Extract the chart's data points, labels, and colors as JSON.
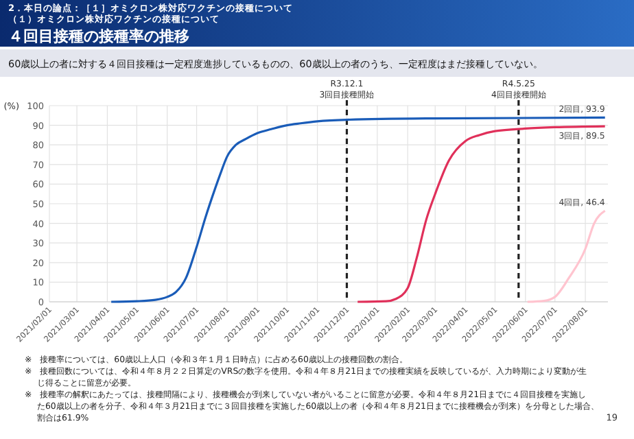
{
  "chart_data": {
    "type": "line",
    "title": "４回目接種の接種率の推移",
    "subtitle": "60歳以上の者に対する４回目接種は一定程度進捗しているものの、60歳以上の者のうち、一定程度はまだ接種していない。",
    "ylabel": "(%)",
    "annotations": [
      "2．本日の論点：［１］オミクロン株対応ワクチンの接種について",
      "（１）オミクロン株対応ワクチンの接種について",
      "※　接種率については、60歳以上人口（令和３年１月１日時点）に占める60歳以上の接種回数の割合。",
      "※　接種回数については、令和４年８月２２日算定のVRSの数字を使用。令和４年８月21日までの接種実績を反映しているが、入力時期により変動が生じ得ることに留意が必要。",
      "※　接種率の解釈にあたっては、接種間隔により、接種機会が到来していない者がいることに留意が必要。令和４年８月21日までに４回目接種を実施した60歳以上の者を分子、令和４年３月21日までに３回目接種を実施した60歳以上の者（令和４年８月21日までに接種機会が到来）を分母とした場合、割合は61.9%",
      "19",
      {
        "text": "2回目, 93.9",
        "x": "2022-08-21",
        "y": 93.9
      },
      {
        "text": "3回目, 89.5",
        "x": "2022-08-21",
        "y": 89.5
      },
      {
        "text": "4回目, 46.4",
        "x": "2022-08-21",
        "y": 46.4
      }
    ],
    "series": [
      {
        "color": "#1a5cb8",
        "x": [
          "2021-04-05",
          "2021-05-01",
          "2021-05-20",
          "2021-06-01",
          "2021-06-10",
          "2021-06-20",
          "2021-07-01",
          "2021-07-10",
          "2021-07-20",
          "2021-07-25",
          "2021-08-01",
          "2021-08-10",
          "2021-08-20",
          "2021-09-01",
          "2021-09-15",
          "2021-10-01",
          "2021-10-15",
          "2021-11-01",
          "2021-12-01",
          "2022-03-01",
          "2022-08-21"
        ],
        "values": [
          0,
          0.3,
          1,
          2.5,
          5,
          12,
          28,
          43,
          58,
          65,
          74,
          80,
          83,
          86,
          88,
          90,
          91,
          92,
          92.8,
          93.5,
          93.9
        ]
      },
      {
        "color": "#e0305a",
        "x": [
          "2021-12-12",
          "2022-01-10",
          "2022-01-20",
          "2022-02-01",
          "2022-02-10",
          "2022-02-20",
          "2022-03-01",
          "2022-03-15",
          "2022-04-01",
          "2022-04-15",
          "2022-05-01",
          "2022-06-01",
          "2022-07-01",
          "2022-08-21"
        ],
        "values": [
          0,
          0.3,
          1.5,
          7,
          22,
          42,
          55,
          72,
          82,
          85,
          87,
          88.3,
          89,
          89.5
        ]
      },
      {
        "color": "#ffc4cf",
        "x": [
          "2022-06-03",
          "2022-06-20",
          "2022-07-01",
          "2022-07-15",
          "2022-08-01",
          "2022-08-10",
          "2022-08-21"
        ],
        "values": [
          0,
          0.5,
          2.5,
          12,
          27,
          40,
          46.4
        ]
      }
    ],
    "xlim": [
      "2021-02-01",
      "2022-08-24"
    ],
    "xticks": [
      {
        "value": "2021-02-01",
        "label": "2021/02/01"
      },
      {
        "value": "2021-03-01",
        "label": "2021/03/01"
      },
      {
        "value": "2021-04-01",
        "label": "2021/04/01"
      },
      {
        "value": "2021-05-01",
        "label": "2021/05/01"
      },
      {
        "value": "2021-06-01",
        "label": "2021/06/01"
      },
      {
        "value": "2021-07-01",
        "label": "2021/07/01"
      },
      {
        "value": "2021-08-01",
        "label": "2021/08/01"
      },
      {
        "value": "2021-09-01",
        "label": "2021/09/01"
      },
      {
        "value": "2021-10-01",
        "label": "2021/10/01"
      },
      {
        "value": "2021-11-01",
        "label": "2021/11/01"
      },
      {
        "value": "2021-12-01",
        "label": "2021/12/01"
      },
      {
        "value": "2022-01-01",
        "label": "2022/01/01"
      },
      {
        "value": "2022-02-01",
        "label": "2022/02/01"
      },
      {
        "value": "2022-03-01",
        "label": "2022/03/01"
      },
      {
        "value": "2022-04-01",
        "label": "2022/04/01"
      },
      {
        "value": "2022-05-01",
        "label": "2022/05/01"
      },
      {
        "value": "2022-06-01",
        "label": "2022/06/01"
      },
      {
        "value": "2022-07-01",
        "label": "2022/07/01"
      },
      {
        "value": "2022-08-01",
        "label": "2022/08/01"
      }
    ],
    "ylim": [
      0,
      100
    ],
    "yticks": [
      0,
      10,
      20,
      30,
      40,
      50,
      60,
      70,
      80,
      90,
      100
    ],
    "grid": true,
    "marker": "none",
    "line_style": "solid",
    "ref_lines": [
      {
        "axis": "x",
        "value": "2021-12-01",
        "label": "R3.12.1\n3回目接種開始",
        "line_style": "dashed",
        "color": "#222222"
      },
      {
        "axis": "x",
        "value": "2022-05-25",
        "label": "R4.5.25\n4回目接種開始",
        "line_style": "dashed",
        "color": "#222222"
      }
    ]
  }
}
